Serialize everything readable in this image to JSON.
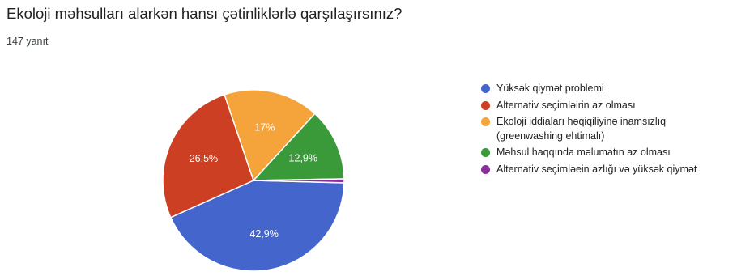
{
  "question": {
    "title": "Ekoloji məhsulları alarkən hansı çətinliklərlə qarşılaşırsınız?",
    "responses": "147 yanıt"
  },
  "chart_data": {
    "type": "pie",
    "title": "Ekoloji məhsulları alarkən hansı çətinliklərlə qarşılaşırsınız?",
    "categories": [
      "Yüksək qiymət problemi",
      "Alternativ seçimləirin az olması",
      "Ekoloji iddiaları həqiqiliyinə inamsızlıq (greenwashing ehtimalı)",
      "Məhsul haqqında məlumatın az olması",
      "Alternativ seçimləein azlığı və yüksək qiymət"
    ],
    "values": [
      42.9,
      26.5,
      17,
      12.9,
      0.7
    ],
    "value_labels": [
      "42,9%",
      "26,5%",
      "17%",
      "12,9%",
      ""
    ],
    "colors": [
      "#4466cc",
      "#cc3f22",
      "#f4a43a",
      "#3a9a3a",
      "#8a2f9a"
    ],
    "legend_position": "right"
  }
}
